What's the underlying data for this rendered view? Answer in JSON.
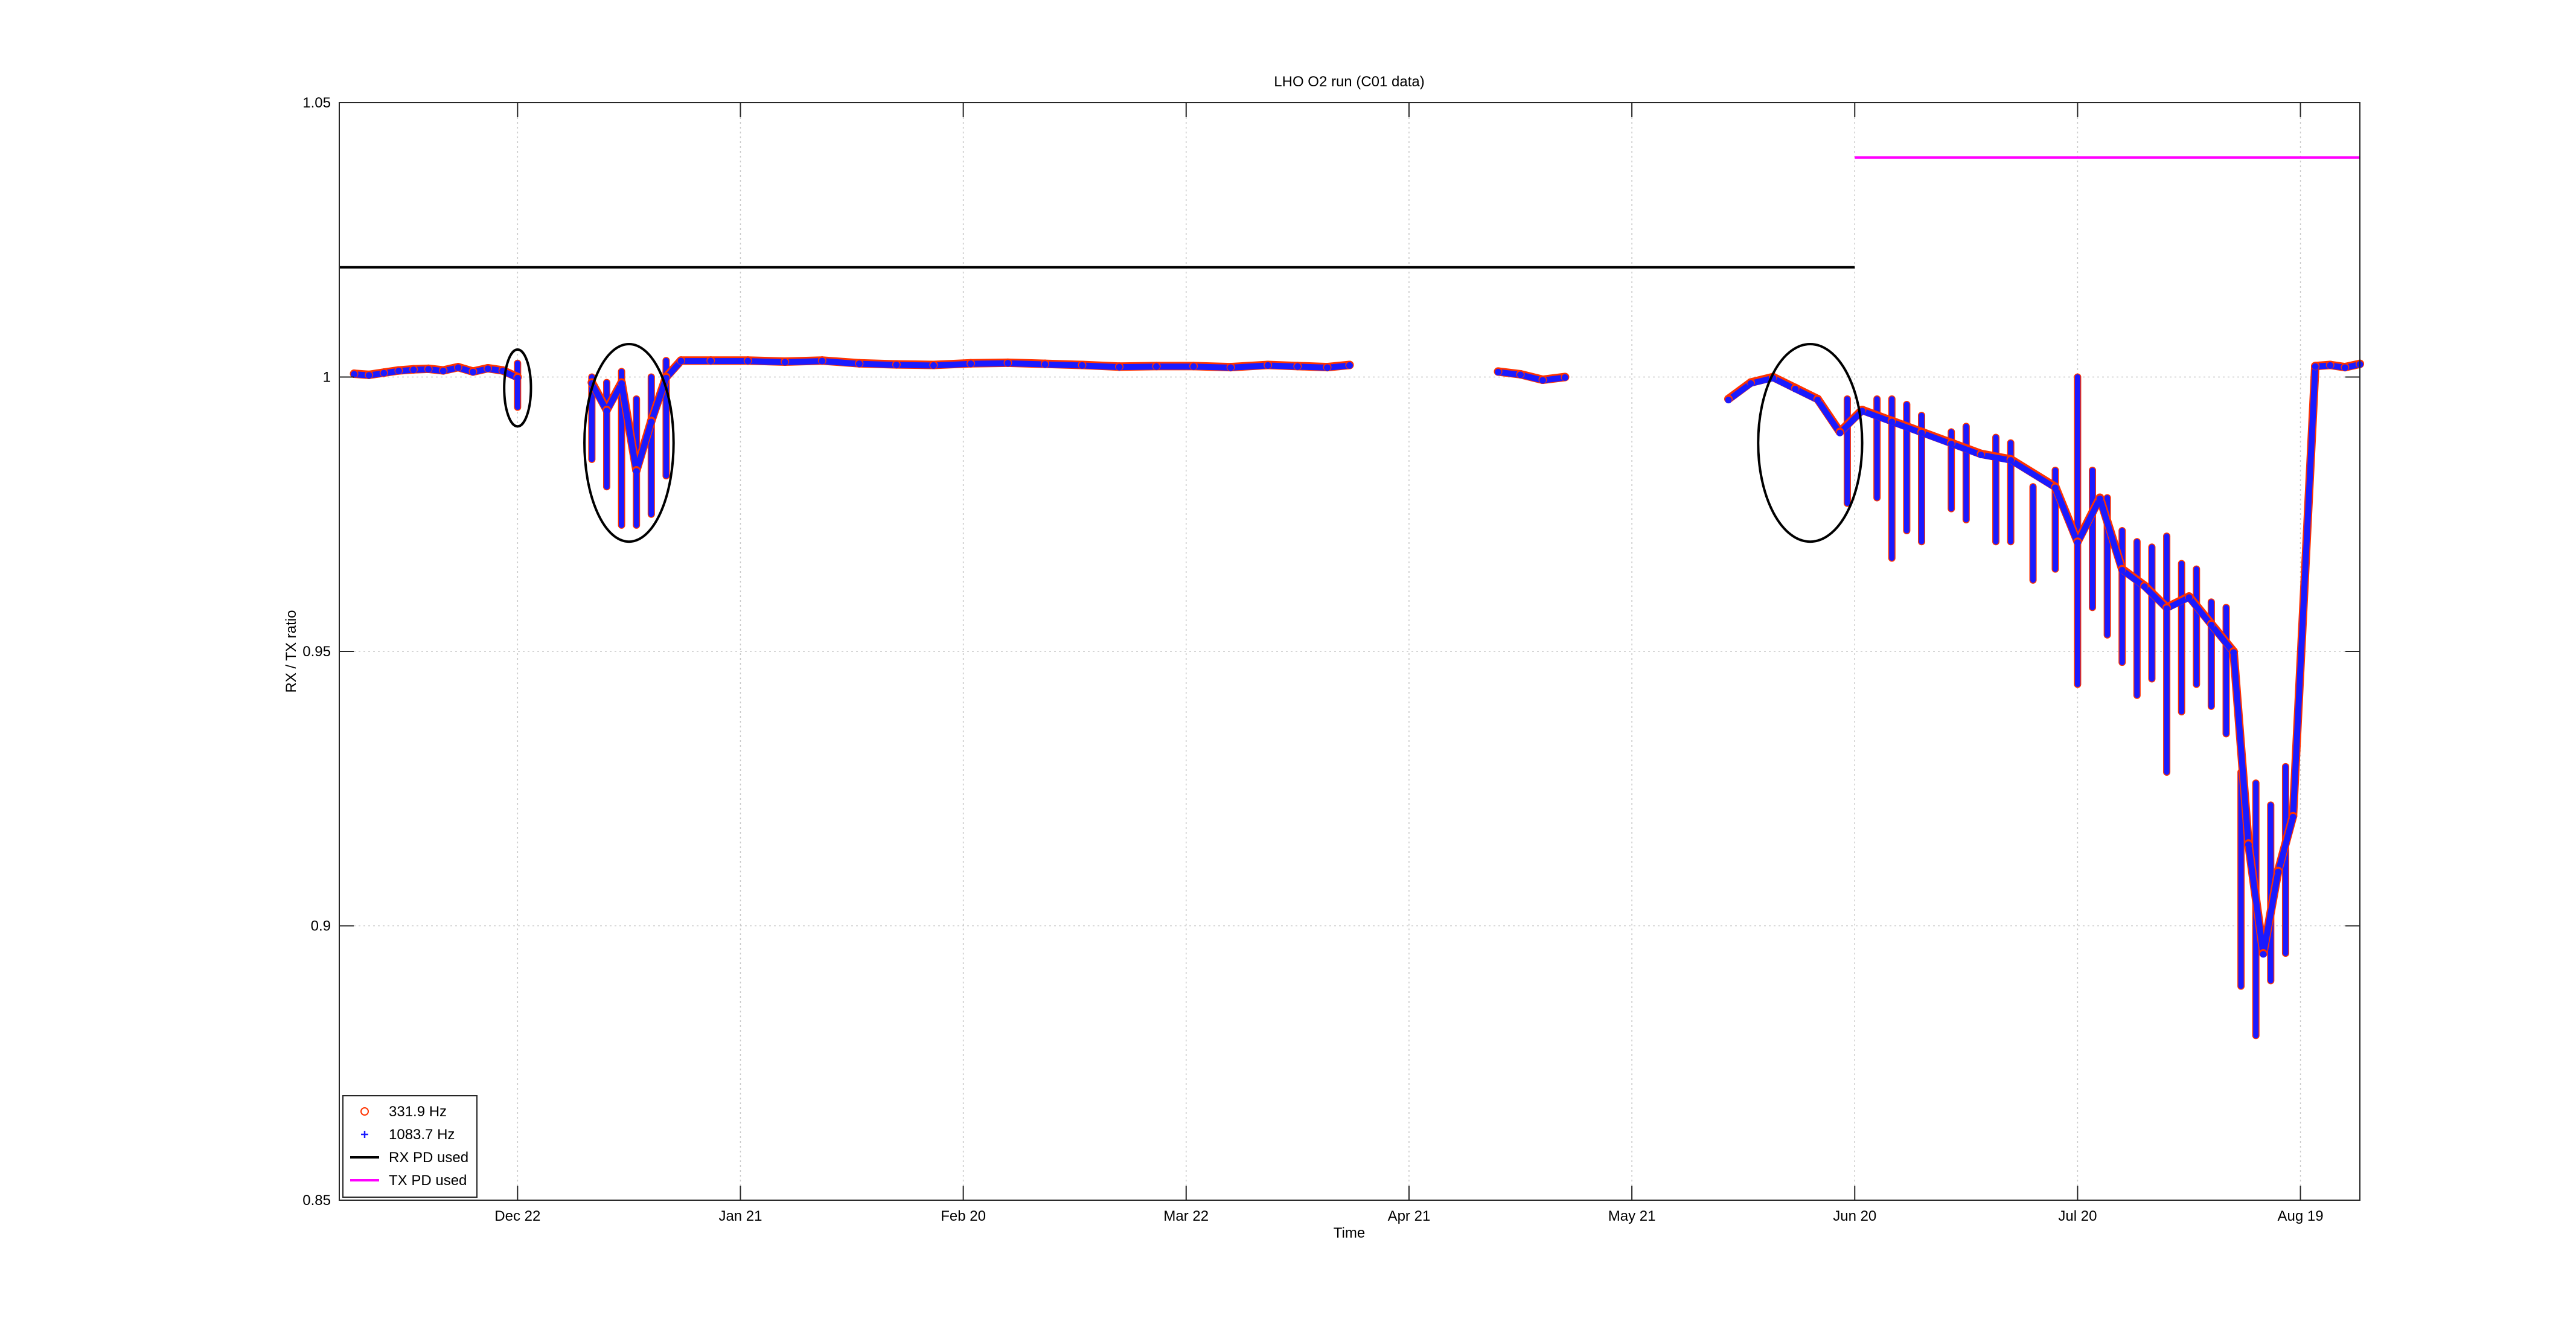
{
  "chart_data": {
    "type": "scatter",
    "title": "LHO O2 run (C01 data)",
    "xlabel": "Time",
    "ylabel": "RX / TX ratio",
    "x_range": [
      "2016-11-28",
      "2017-08-27"
    ],
    "ylim": [
      0.85,
      1.05
    ],
    "grid": true,
    "legend_position": "bottom-left",
    "x_ticks": [
      {
        "date": "2016-12-22",
        "label": "Dec 22"
      },
      {
        "date": "2017-01-21",
        "label": "Jan 21"
      },
      {
        "date": "2017-02-20",
        "label": "Feb 20"
      },
      {
        "date": "2017-03-22",
        "label": "Mar 22"
      },
      {
        "date": "2017-04-21",
        "label": "Apr 21"
      },
      {
        "date": "2017-05-21",
        "label": "May 21"
      },
      {
        "date": "2017-06-20",
        "label": "Jun 20"
      },
      {
        "date": "2017-07-20",
        "label": "Jul 20"
      },
      {
        "date": "2017-08-19",
        "label": "Aug 19"
      }
    ],
    "y_ticks": [
      {
        "value": 0.85,
        "label": "0.85"
      },
      {
        "value": 0.9,
        "label": "0.9"
      },
      {
        "value": 0.95,
        "label": "0.95"
      },
      {
        "value": 1.0,
        "label": "1"
      },
      {
        "value": 1.05,
        "label": "1.05"
      }
    ],
    "series": [
      {
        "name": "331.9 Hz",
        "marker": "circle",
        "color": "#ff3300",
        "points": [
          [
            "2016-11-30",
            1.0006
          ],
          [
            "2016-12-02",
            1.0004
          ],
          [
            "2016-12-04",
            1.0008
          ],
          [
            "2016-12-06",
            1.0012
          ],
          [
            "2016-12-08",
            1.0014
          ],
          [
            "2016-12-10",
            1.0015
          ],
          [
            "2016-12-12",
            1.0012
          ],
          [
            "2016-12-14",
            1.0018
          ],
          [
            "2016-12-16",
            1.001
          ],
          [
            "2016-12-18",
            1.0016
          ],
          [
            "2016-12-20",
            1.0012
          ],
          [
            "2016-12-22",
            1.0
          ],
          [
            "2017-01-01",
            0.999
          ],
          [
            "2017-01-03",
            0.994
          ],
          [
            "2017-01-05",
            0.999
          ],
          [
            "2017-01-07",
            0.983
          ],
          [
            "2017-01-09",
            0.992
          ],
          [
            "2017-01-11",
            1.0
          ],
          [
            "2017-01-13",
            1.003
          ],
          [
            "2017-01-17",
            1.003
          ],
          [
            "2017-01-22",
            1.003
          ],
          [
            "2017-01-27",
            1.0028
          ],
          [
            "2017-02-01",
            1.003
          ],
          [
            "2017-02-06",
            1.0025
          ],
          [
            "2017-02-11",
            1.0023
          ],
          [
            "2017-02-16",
            1.0022
          ],
          [
            "2017-02-21",
            1.0025
          ],
          [
            "2017-02-26",
            1.0026
          ],
          [
            "2017-03-03",
            1.0024
          ],
          [
            "2017-03-08",
            1.0022
          ],
          [
            "2017-03-13",
            1.0019
          ],
          [
            "2017-03-18",
            1.002
          ],
          [
            "2017-03-23",
            1.002
          ],
          [
            "2017-03-28",
            1.0018
          ],
          [
            "2017-04-02",
            1.0022
          ],
          [
            "2017-04-06",
            1.002
          ],
          [
            "2017-04-10",
            1.0018
          ],
          [
            "2017-04-13",
            1.0022
          ],
          [
            "2017-05-03",
            1.001
          ],
          [
            "2017-05-06",
            1.0005
          ],
          [
            "2017-05-09",
            0.9995
          ],
          [
            "2017-05-12",
            1.0
          ],
          [
            "2017-06-03",
            0.996
          ],
          [
            "2017-06-06",
            0.999
          ],
          [
            "2017-06-09",
            1.0
          ],
          [
            "2017-06-12",
            0.998
          ],
          [
            "2017-06-15",
            0.996
          ],
          [
            "2017-06-18",
            0.99
          ],
          [
            "2017-06-21",
            0.994
          ],
          [
            "2017-06-25",
            0.992
          ],
          [
            "2017-06-29",
            0.99
          ],
          [
            "2017-07-03",
            0.988
          ],
          [
            "2017-07-07",
            0.986
          ],
          [
            "2017-07-11",
            0.985
          ],
          [
            "2017-07-17",
            0.98
          ],
          [
            "2017-07-20",
            0.97
          ],
          [
            "2017-07-23",
            0.978
          ],
          [
            "2017-07-26",
            0.965
          ],
          [
            "2017-07-29",
            0.962
          ],
          [
            "2017-08-01",
            0.958
          ],
          [
            "2017-08-04",
            0.96
          ],
          [
            "2017-08-07",
            0.955
          ],
          [
            "2017-08-10",
            0.95
          ],
          [
            "2017-08-12",
            0.915
          ],
          [
            "2017-08-14",
            0.895
          ],
          [
            "2017-08-16",
            0.91
          ],
          [
            "2017-08-18",
            0.92
          ],
          [
            "2017-08-21",
            1.002
          ],
          [
            "2017-08-23",
            1.0022
          ],
          [
            "2017-08-25",
            1.0018
          ],
          [
            "2017-08-27",
            1.0024
          ]
        ]
      },
      {
        "name": "1083.7 Hz",
        "marker": "plus",
        "color": "#1a1aff",
        "points": [
          [
            "2016-11-30",
            1.0005
          ],
          [
            "2016-12-02",
            1.0003
          ],
          [
            "2016-12-04",
            1.0007
          ],
          [
            "2016-12-06",
            1.0011
          ],
          [
            "2016-12-08",
            1.0013
          ],
          [
            "2016-12-10",
            1.0014
          ],
          [
            "2016-12-12",
            1.0011
          ],
          [
            "2016-12-14",
            1.0017
          ],
          [
            "2016-12-16",
            1.0009
          ],
          [
            "2016-12-18",
            1.0015
          ],
          [
            "2016-12-20",
            1.0011
          ],
          [
            "2016-12-22",
            0.9998
          ],
          [
            "2017-01-01",
            0.9988
          ],
          [
            "2017-01-03",
            0.9938
          ],
          [
            "2017-01-05",
            0.9988
          ],
          [
            "2017-01-07",
            0.9828
          ],
          [
            "2017-01-09",
            0.9918
          ],
          [
            "2017-01-11",
            0.9998
          ],
          [
            "2017-01-13",
            1.0029
          ],
          [
            "2017-01-17",
            1.0029
          ],
          [
            "2017-01-22",
            1.0029
          ],
          [
            "2017-01-27",
            1.0027
          ],
          [
            "2017-02-01",
            1.0029
          ],
          [
            "2017-02-06",
            1.0024
          ],
          [
            "2017-02-11",
            1.0022
          ],
          [
            "2017-02-16",
            1.0021
          ],
          [
            "2017-02-21",
            1.0024
          ],
          [
            "2017-02-26",
            1.0025
          ],
          [
            "2017-03-03",
            1.0023
          ],
          [
            "2017-03-08",
            1.0021
          ],
          [
            "2017-03-13",
            1.0018
          ],
          [
            "2017-03-18",
            1.0019
          ],
          [
            "2017-03-23",
            1.0019
          ],
          [
            "2017-03-28",
            1.0017
          ],
          [
            "2017-04-02",
            1.0021
          ],
          [
            "2017-04-06",
            1.0019
          ],
          [
            "2017-04-10",
            1.0017
          ],
          [
            "2017-04-13",
            1.0021
          ],
          [
            "2017-05-03",
            1.0009
          ],
          [
            "2017-05-06",
            1.0004
          ],
          [
            "2017-05-09",
            0.9994
          ],
          [
            "2017-05-12",
            0.9999
          ],
          [
            "2017-06-03",
            0.9958
          ],
          [
            "2017-06-06",
            0.9988
          ],
          [
            "2017-06-09",
            0.9998
          ],
          [
            "2017-06-12",
            0.9978
          ],
          [
            "2017-06-15",
            0.9958
          ],
          [
            "2017-06-18",
            0.9898
          ],
          [
            "2017-06-21",
            0.9938
          ],
          [
            "2017-06-25",
            0.9918
          ],
          [
            "2017-06-29",
            0.9898
          ],
          [
            "2017-07-03",
            0.9878
          ],
          [
            "2017-07-07",
            0.9858
          ],
          [
            "2017-07-11",
            0.9848
          ],
          [
            "2017-07-17",
            0.9798
          ],
          [
            "2017-07-20",
            0.9698
          ],
          [
            "2017-07-23",
            0.9778
          ],
          [
            "2017-07-26",
            0.9648
          ],
          [
            "2017-07-29",
            0.9618
          ],
          [
            "2017-08-01",
            0.9578
          ],
          [
            "2017-08-04",
            0.9598
          ],
          [
            "2017-08-07",
            0.9548
          ],
          [
            "2017-08-10",
            0.9498
          ],
          [
            "2017-08-12",
            0.9148
          ],
          [
            "2017-08-14",
            0.8948
          ],
          [
            "2017-08-16",
            0.9098
          ],
          [
            "2017-08-18",
            0.9198
          ],
          [
            "2017-08-21",
            1.0019
          ],
          [
            "2017-08-23",
            1.0021
          ],
          [
            "2017-08-25",
            1.0017
          ],
          [
            "2017-08-27",
            1.0023
          ]
        ]
      },
      {
        "name": "RX PD used",
        "marker": "line",
        "color": "#000000",
        "points": [
          [
            "2016-11-28",
            1.02
          ],
          [
            "2017-06-20",
            1.02
          ]
        ]
      },
      {
        "name": "TX PD used",
        "marker": "line",
        "color": "#ff00ff",
        "points": [
          [
            "2017-06-20",
            1.04
          ],
          [
            "2017-08-27",
            1.04
          ]
        ]
      }
    ],
    "vertical_segments": [
      {
        "date": "2016-12-22",
        "low": 0.9945,
        "high": 1.0025
      },
      {
        "date": "2017-01-01",
        "low": 0.985,
        "high": 1.0
      },
      {
        "date": "2017-01-03",
        "low": 0.98,
        "high": 0.999
      },
      {
        "date": "2017-01-05",
        "low": 0.973,
        "high": 1.001
      },
      {
        "date": "2017-01-07",
        "low": 0.973,
        "high": 0.996
      },
      {
        "date": "2017-01-09",
        "low": 0.975,
        "high": 1.0
      },
      {
        "date": "2017-01-11",
        "low": 0.982,
        "high": 1.003
      },
      {
        "date": "2017-06-19",
        "low": 0.977,
        "high": 0.996
      },
      {
        "date": "2017-06-23",
        "low": 0.978,
        "high": 0.996
      },
      {
        "date": "2017-06-25",
        "low": 0.967,
        "high": 0.996
      },
      {
        "date": "2017-06-27",
        "low": 0.972,
        "high": 0.995
      },
      {
        "date": "2017-06-29",
        "low": 0.97,
        "high": 0.993
      },
      {
        "date": "2017-07-03",
        "low": 0.976,
        "high": 0.99
      },
      {
        "date": "2017-07-05",
        "low": 0.974,
        "high": 0.991
      },
      {
        "date": "2017-07-09",
        "low": 0.97,
        "high": 0.989
      },
      {
        "date": "2017-07-11",
        "low": 0.97,
        "high": 0.988
      },
      {
        "date": "2017-07-14",
        "low": 0.963,
        "high": 0.98
      },
      {
        "date": "2017-07-17",
        "low": 0.965,
        "high": 0.983
      },
      {
        "date": "2017-07-20",
        "low": 0.944,
        "high": 1.0
      },
      {
        "date": "2017-07-22",
        "low": 0.958,
        "high": 0.983
      },
      {
        "date": "2017-07-24",
        "low": 0.953,
        "high": 0.978
      },
      {
        "date": "2017-07-26",
        "low": 0.948,
        "high": 0.972
      },
      {
        "date": "2017-07-28",
        "low": 0.942,
        "high": 0.97
      },
      {
        "date": "2017-07-30",
        "low": 0.945,
        "high": 0.969
      },
      {
        "date": "2017-08-01",
        "low": 0.928,
        "high": 0.971
      },
      {
        "date": "2017-08-03",
        "low": 0.939,
        "high": 0.966
      },
      {
        "date": "2017-08-05",
        "low": 0.944,
        "high": 0.965
      },
      {
        "date": "2017-08-07",
        "low": 0.94,
        "high": 0.959
      },
      {
        "date": "2017-08-09",
        "low": 0.935,
        "high": 0.958
      },
      {
        "date": "2017-08-11",
        "low": 0.889,
        "high": 0.928
      },
      {
        "date": "2017-08-13",
        "low": 0.88,
        "high": 0.926
      },
      {
        "date": "2017-08-15",
        "low": 0.89,
        "high": 0.922
      },
      {
        "date": "2017-08-17",
        "low": 0.895,
        "high": 0.929
      }
    ],
    "annotations": [
      {
        "type": "ellipse",
        "center_date": "2016-12-22",
        "center_value": 0.998,
        "half_width_days": 1.8,
        "half_height": 0.007
      },
      {
        "type": "ellipse",
        "center_date": "2017-01-06",
        "center_value": 0.988,
        "half_width_days": 6.0,
        "half_height": 0.018
      },
      {
        "type": "ellipse",
        "center_date": "2017-06-14",
        "center_value": 0.988,
        "half_width_days": 7.0,
        "half_height": 0.018
      }
    ]
  }
}
